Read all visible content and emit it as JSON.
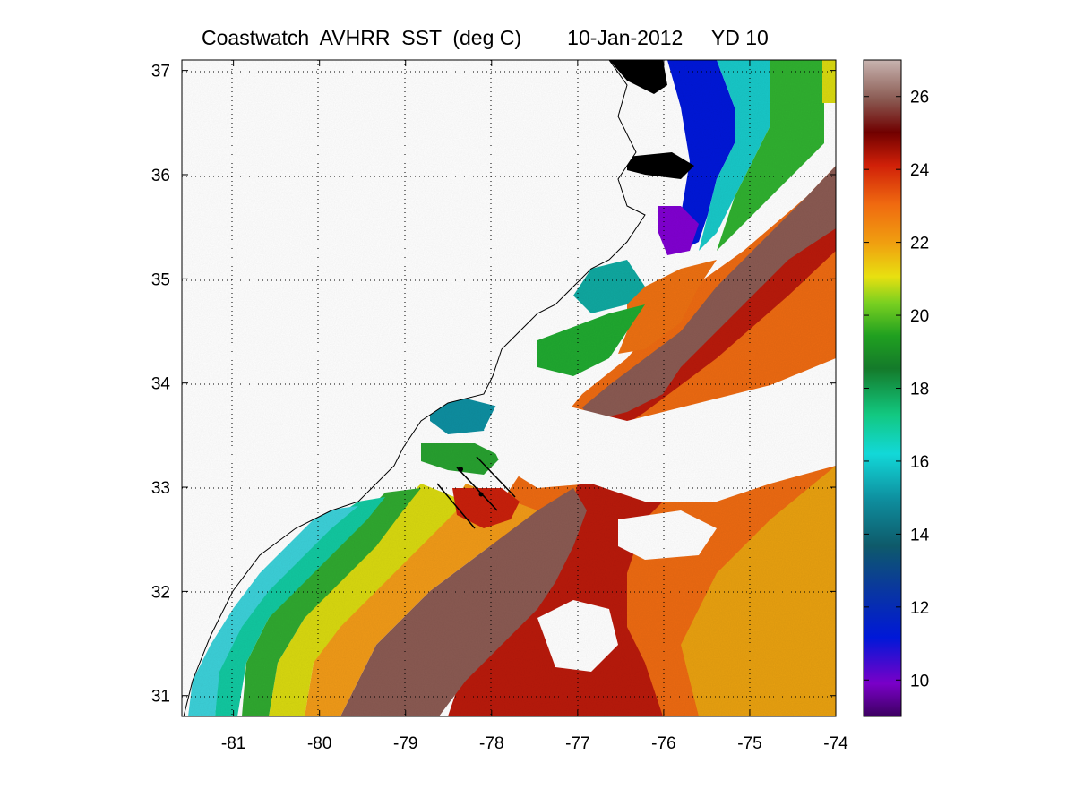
{
  "title": "Coastwatch  AVHRR  SST  (deg C)        10-Jan-2012     YD 10",
  "chart_data": {
    "type": "heatmap",
    "title": "Coastwatch  AVHRR  SST  (deg C)        10-Jan-2012     YD 10",
    "variable": "SST (deg C)",
    "date": "10-Jan-2012",
    "year_day": "YD 10",
    "xlim": [
      -81.6,
      -74
    ],
    "ylim": [
      30.8,
      37.1
    ],
    "x_ticks": [
      -81,
      -80,
      -79,
      -78,
      -77,
      -76,
      -75,
      -74
    ],
    "y_ticks": [
      31,
      32,
      33,
      34,
      35,
      36,
      37
    ],
    "grid": true,
    "colorbar": {
      "range": [
        9,
        27
      ],
      "ticks": [
        10,
        12,
        14,
        16,
        18,
        20,
        22,
        24,
        26
      ]
    }
  },
  "colors": {
    "cold": "#7a00c8",
    "cool": "#0018d8",
    "shelf": "#12c8c8",
    "mid": "#14a82c",
    "warm": "#e8d810",
    "orange": "#f06a10",
    "red": "#b81a0c",
    "gulfstream": "#8a5a52",
    "land": "#ffffff",
    "cloud": "#ffffff"
  }
}
